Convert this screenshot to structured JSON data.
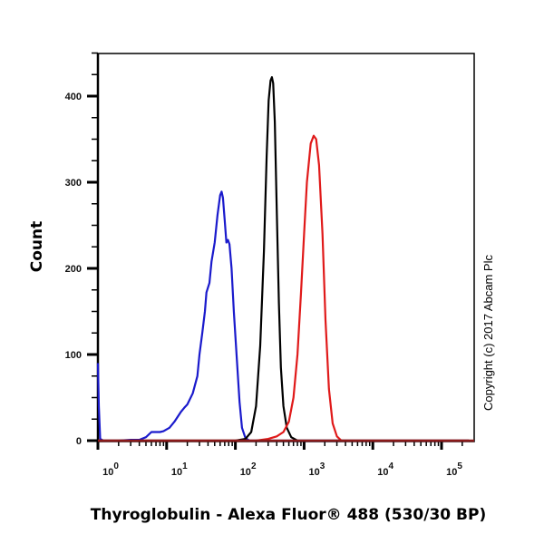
{
  "chart_data": {
    "type": "line",
    "title": "",
    "xlabel": "Thyroglobulin - Alexa Fluor® 488 (530/30 BP)",
    "ylabel": "Count",
    "xscale": "log",
    "xlim": [
      1,
      250000
    ],
    "ylim": [
      0,
      450
    ],
    "x_tick_labels": [
      {
        "base": "10",
        "exp": "0",
        "value": 1
      },
      {
        "base": "10",
        "exp": "1",
        "value": 10
      },
      {
        "base": "10",
        "exp": "2",
        "value": 100
      },
      {
        "base": "10",
        "exp": "3",
        "value": 1000
      },
      {
        "base": "10",
        "exp": "4",
        "value": 10000
      },
      {
        "base": "10",
        "exp": "5",
        "value": 100000
      }
    ],
    "y_ticks": [
      0,
      100,
      200,
      300,
      400
    ],
    "grid": false,
    "legend": null,
    "annotation": "Copyright (c) 2017 Abcam Plc",
    "series": [
      {
        "name": "blue",
        "color": "#1a1acc",
        "points": [
          [
            1.0,
            90
          ],
          [
            1.03,
            40
          ],
          [
            1.08,
            2
          ],
          [
            1.2,
            0
          ],
          [
            2,
            0
          ],
          [
            3,
            1
          ],
          [
            4,
            1
          ],
          [
            5,
            4
          ],
          [
            6,
            10
          ],
          [
            7,
            10
          ],
          [
            8,
            10
          ],
          [
            9,
            11
          ],
          [
            11,
            15
          ],
          [
            13,
            22
          ],
          [
            16,
            33
          ],
          [
            18,
            38
          ],
          [
            20,
            42
          ],
          [
            24,
            55
          ],
          [
            28,
            75
          ],
          [
            30,
            100
          ],
          [
            33,
            125
          ],
          [
            36,
            150
          ],
          [
            38,
            172
          ],
          [
            42,
            183
          ],
          [
            45,
            208
          ],
          [
            50,
            230
          ],
          [
            55,
            262
          ],
          [
            60,
            285
          ],
          [
            63,
            289
          ],
          [
            66,
            282
          ],
          [
            70,
            255
          ],
          [
            74,
            230
          ],
          [
            78,
            233
          ],
          [
            82,
            228
          ],
          [
            88,
            200
          ],
          [
            95,
            150
          ],
          [
            105,
            95
          ],
          [
            115,
            45
          ],
          [
            125,
            15
          ],
          [
            140,
            3
          ],
          [
            160,
            0
          ],
          [
            250000,
            0
          ]
        ]
      },
      {
        "name": "black",
        "color": "#000000",
        "points": [
          [
            1,
            0
          ],
          [
            100,
            0
          ],
          [
            140,
            2
          ],
          [
            170,
            10
          ],
          [
            200,
            40
          ],
          [
            230,
            110
          ],
          [
            260,
            220
          ],
          [
            285,
            330
          ],
          [
            305,
            395
          ],
          [
            325,
            418
          ],
          [
            340,
            422
          ],
          [
            355,
            415
          ],
          [
            375,
            370
          ],
          [
            400,
            270
          ],
          [
            430,
            160
          ],
          [
            460,
            85
          ],
          [
            500,
            40
          ],
          [
            560,
            15
          ],
          [
            650,
            4
          ],
          [
            800,
            0
          ],
          [
            250000,
            0
          ]
        ]
      },
      {
        "name": "red",
        "color": "#e01a1a",
        "points": [
          [
            1,
            0
          ],
          [
            200,
            0
          ],
          [
            300,
            2
          ],
          [
            400,
            5
          ],
          [
            500,
            10
          ],
          [
            600,
            22
          ],
          [
            700,
            50
          ],
          [
            800,
            100
          ],
          [
            900,
            170
          ],
          [
            1000,
            240
          ],
          [
            1100,
            300
          ],
          [
            1250,
            345
          ],
          [
            1380,
            354
          ],
          [
            1500,
            350
          ],
          [
            1650,
            320
          ],
          [
            1850,
            240
          ],
          [
            2050,
            140
          ],
          [
            2300,
            60
          ],
          [
            2600,
            20
          ],
          [
            3000,
            5
          ],
          [
            3500,
            0
          ],
          [
            250000,
            0
          ]
        ]
      }
    ]
  },
  "labels": {
    "ylabel": "Count",
    "xlabel": "Thyroglobulin - Alexa Fluor® 488 (530/30 BP)",
    "copyright": "Copyright (c) 2017 Abcam Plc"
  },
  "axis_color": "#000000",
  "baseline_color": "#8b1a1a"
}
